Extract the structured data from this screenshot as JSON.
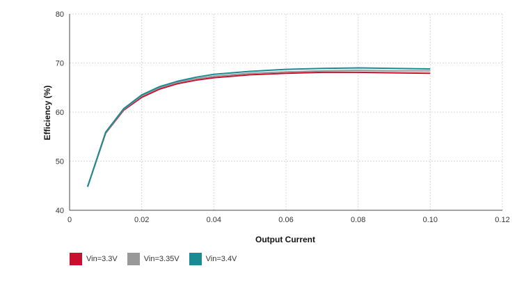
{
  "chart_data": {
    "type": "line",
    "title": "",
    "xlabel": "Output Current",
    "ylabel": "Efficiency (%)",
    "xlim": [
      0,
      0.12
    ],
    "ylim": [
      40,
      80
    ],
    "x_ticks": [
      "0",
      "0.02",
      "0.04",
      "0.06",
      "0.08",
      "0.10",
      "0.12"
    ],
    "y_ticks": [
      "40",
      "50",
      "60",
      "70",
      "80"
    ],
    "grid": true,
    "legend_position": "bottom-left",
    "x": [
      0.005,
      0.01,
      0.015,
      0.02,
      0.025,
      0.03,
      0.035,
      0.04,
      0.05,
      0.06,
      0.07,
      0.08,
      0.09,
      0.1
    ],
    "series": [
      {
        "name": "Vin=3.3V",
        "color": "#c8102e",
        "values": [
          44.8,
          55.7,
          60.4,
          63.0,
          64.7,
          65.8,
          66.5,
          67.0,
          67.6,
          67.9,
          68.1,
          68.1,
          68.0,
          67.9
        ]
      },
      {
        "name": "Vin=3.35V",
        "color": "#999999",
        "values": [
          44.8,
          55.8,
          60.6,
          63.3,
          65.0,
          66.1,
          66.8,
          67.3,
          67.9,
          68.2,
          68.4,
          68.5,
          68.4,
          68.4
        ]
      },
      {
        "name": "Vin=3.4V",
        "color": "#1a8a95",
        "values": [
          44.8,
          55.9,
          60.7,
          63.5,
          65.2,
          66.3,
          67.1,
          67.7,
          68.3,
          68.7,
          68.9,
          69.0,
          68.9,
          68.8
        ]
      }
    ]
  }
}
